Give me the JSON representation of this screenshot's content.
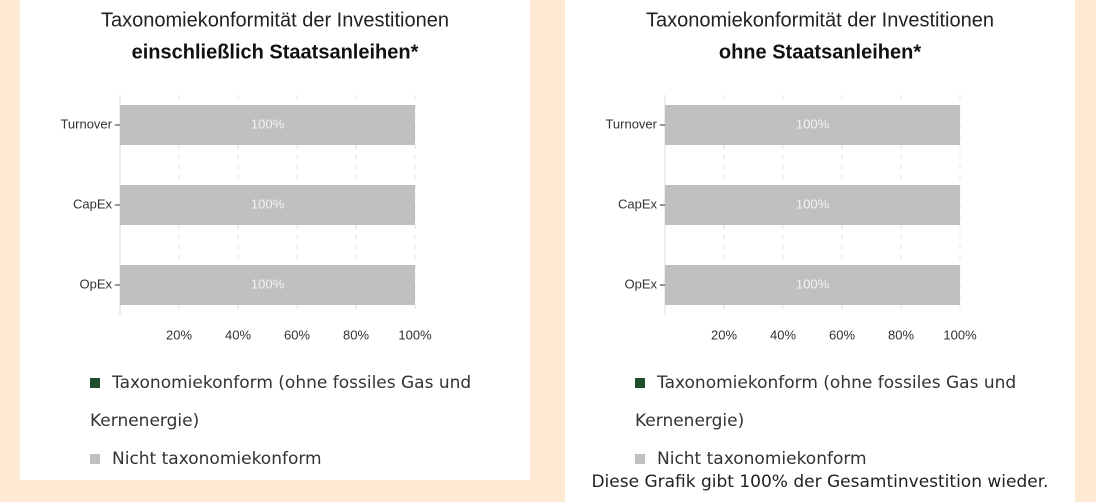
{
  "chart_data": [
    {
      "type": "bar",
      "orientation": "horizontal",
      "stacked": true,
      "title": "Taxonomiekonformität der Investitionen",
      "subtitle": "einschließlich Staatsanleihen*",
      "categories": [
        "Turnover",
        "CapEx",
        "OpEx"
      ],
      "series": [
        {
          "name": "Taxonomiekonform (ohne fossiles Gas und Kernenergie)",
          "color": "#1f4d2c",
          "values": [
            0,
            0,
            0
          ]
        },
        {
          "name": "Nicht taxonomiekonform",
          "color": "#c0c0c0",
          "values": [
            100,
            100,
            100
          ],
          "value_labels": [
            "100%",
            "100%",
            "100%"
          ]
        }
      ],
      "xlim": [
        0,
        100
      ],
      "xticks": [
        {
          "value": 20,
          "label": "20%"
        },
        {
          "value": 40,
          "label": "40%"
        },
        {
          "value": 60,
          "label": "60%"
        },
        {
          "value": 80,
          "label": "80%"
        },
        {
          "value": 100,
          "label": "100%"
        }
      ],
      "grid": true
    },
    {
      "type": "bar",
      "orientation": "horizontal",
      "stacked": true,
      "title": "Taxonomiekonformität der Investitionen",
      "subtitle": "ohne Staatsanleihen*",
      "categories": [
        "Turnover",
        "CapEx",
        "OpEx"
      ],
      "series": [
        {
          "name": "Taxonomiekonform (ohne fossiles Gas und Kernenergie)",
          "color": "#1f4d2c",
          "values": [
            0,
            0,
            0
          ]
        },
        {
          "name": "Nicht taxonomiekonform",
          "color": "#c0c0c0",
          "values": [
            100,
            100,
            100
          ],
          "value_labels": [
            "100%",
            "100%",
            "100%"
          ]
        }
      ],
      "xlim": [
        0,
        100
      ],
      "xticks": [
        {
          "value": 20,
          "label": "20%"
        },
        {
          "value": 40,
          "label": "40%"
        },
        {
          "value": 60,
          "label": "60%"
        },
        {
          "value": 80,
          "label": "80%"
        },
        {
          "value": 100,
          "label": "100%"
        }
      ],
      "grid": true,
      "note": "Diese Grafik gibt 100% der Gesamtinvestition wieder."
    }
  ]
}
